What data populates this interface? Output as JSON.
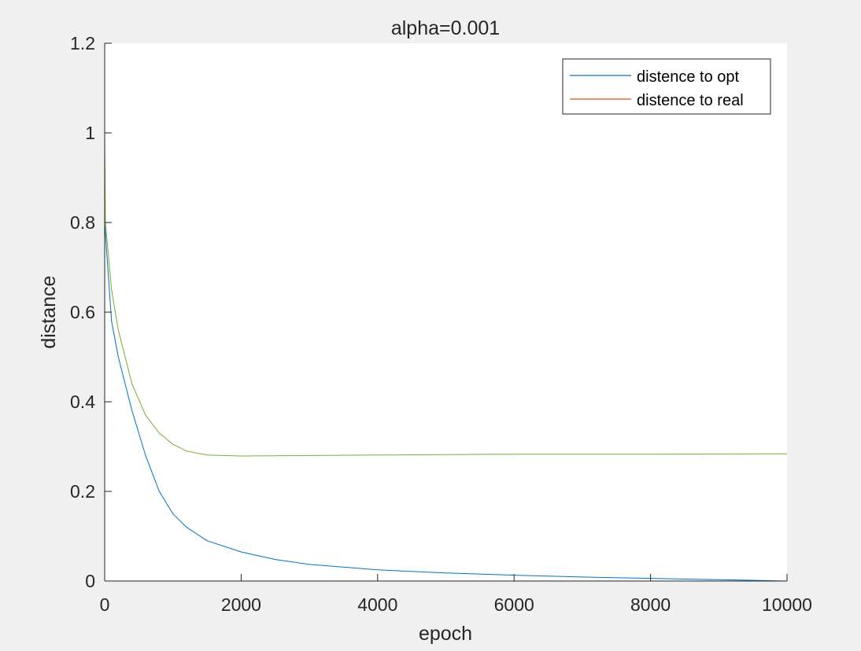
{
  "chart_data": {
    "type": "line",
    "title": "alpha=0.001",
    "xlabel": "epoch",
    "ylabel": "distance",
    "xlim": [
      0,
      10000
    ],
    "ylim": [
      0,
      1.2
    ],
    "xticks": [
      "0",
      "2000",
      "4000",
      "6000",
      "8000",
      "10000"
    ],
    "yticks": [
      "0",
      "0.2",
      "0.4",
      "0.6",
      "0.8",
      "1",
      "1.2"
    ],
    "grid": false,
    "legend_position": "top-right",
    "series": [
      {
        "name": "distence to opt",
        "color": "#0072BD",
        "x": [
          0,
          100,
          200,
          400,
          600,
          800,
          1000,
          1200,
          1500,
          2000,
          2500,
          3000,
          4000,
          5000,
          6000,
          7000,
          8000,
          9000,
          10000
        ],
        "y": [
          0.8,
          0.58,
          0.5,
          0.38,
          0.28,
          0.2,
          0.15,
          0.12,
          0.09,
          0.065,
          0.048,
          0.037,
          0.025,
          0.018,
          0.013,
          0.009,
          0.006,
          0.003,
          0.0
        ]
      },
      {
        "name": "distence to real",
        "color": "#D95319",
        "x": [
          0,
          100,
          200,
          400,
          600,
          800,
          1000,
          1200,
          1500,
          2000,
          3000,
          4000,
          6000,
          8000,
          10000
        ],
        "y": [
          0.0,
          0.0,
          0.0,
          0.0,
          0.0,
          0.0,
          0.0,
          0.0,
          0.0,
          0.0,
          0.0,
          0.0,
          0.0,
          0.0,
          0.0
        ]
      },
      {
        "name": "",
        "color": "#77AC30",
        "x": [
          0,
          10,
          100,
          200,
          400,
          600,
          800,
          1000,
          1200,
          1500,
          2000,
          3000,
          4000,
          6000,
          8000,
          10000
        ],
        "y": [
          1.0,
          0.8,
          0.65,
          0.56,
          0.44,
          0.37,
          0.33,
          0.305,
          0.29,
          0.281,
          0.279,
          0.28,
          0.281,
          0.283,
          0.283,
          0.284
        ]
      }
    ]
  }
}
